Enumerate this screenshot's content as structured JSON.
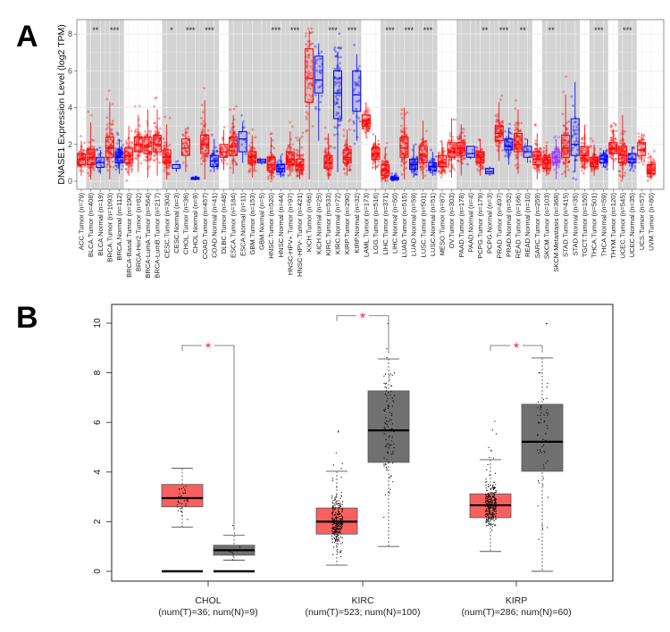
{
  "chart_data": [
    {
      "panel": "A",
      "type": "box",
      "ylabel": "DNASE1 Expression Level (log2 TPM)",
      "ylim": [
        0,
        8.5
      ],
      "yticks": [
        0,
        2,
        4,
        6,
        8
      ],
      "colors": {
        "tumor": "#ff0000",
        "normal": "#0000ff",
        "metastasis": "#9933ff",
        "band": "#d3d3d3"
      },
      "stats_order": [
        "min",
        "q1",
        "median",
        "q3",
        "max"
      ],
      "groups": [
        {
          "label": "ACC.Tumor (n=79)",
          "type": "tumor",
          "n": 79,
          "stats": [
            0.3,
            0.9,
            1.2,
            1.5,
            2.2
          ]
        },
        {
          "label": "BLCA.Tumor (n=408)",
          "type": "tumor",
          "n": 408,
          "stats": [
            0.1,
            0.9,
            1.3,
            1.7,
            3.2
          ]
        },
        {
          "label": "BLCA.Normal (n=19)",
          "type": "normal",
          "n": 19,
          "stats": [
            0.4,
            0.75,
            1.0,
            1.3,
            1.7
          ]
        },
        {
          "label": "BRCA.Tumor (n=1093)",
          "type": "tumor",
          "n": 1093,
          "stats": [
            0.1,
            1.3,
            1.8,
            2.4,
            4.3
          ]
        },
        {
          "label": "BRCA.Normal (n=112)",
          "type": "normal",
          "n": 112,
          "stats": [
            0.4,
            1.0,
            1.3,
            1.6,
            2.3
          ]
        },
        {
          "label": "BRCA-Basal.Tumor (n=190)",
          "type": "tumor",
          "n": 190,
          "stats": [
            0.3,
            1.0,
            1.4,
            1.8,
            3.0
          ]
        },
        {
          "label": "BRCA-Her2.Tumor (n=82)",
          "type": "tumor",
          "n": 82,
          "stats": [
            0.5,
            1.6,
            2.0,
            2.4,
            3.6
          ]
        },
        {
          "label": "BRCA-LumA.Tumor (n=564)",
          "type": "tumor",
          "n": 564,
          "stats": [
            0.2,
            1.5,
            1.9,
            2.4,
            3.9
          ]
        },
        {
          "label": "BRCA-LumB.Tumor (n=217)",
          "type": "tumor",
          "n": 217,
          "stats": [
            0.3,
            1.6,
            2.0,
            2.5,
            3.9
          ]
        },
        {
          "label": "CESC.Tumor (n=304)",
          "type": "tumor",
          "n": 304,
          "stats": [
            0.1,
            1.0,
            1.3,
            1.7,
            3.1
          ]
        },
        {
          "label": "CESC.Normal (n=3)",
          "type": "normal",
          "n": 3,
          "stats": [
            0.5,
            0.7,
            0.9,
            0.9,
            0.9
          ]
        },
        {
          "label": "CHOL.Tumor (n=36)",
          "type": "tumor",
          "n": 36,
          "stats": [
            0.5,
            1.4,
            1.8,
            2.3,
            2.9
          ]
        },
        {
          "label": "CHOL.Normal (n=9)",
          "type": "normal",
          "n": 9,
          "stats": [
            0.05,
            0.1,
            0.15,
            0.2,
            0.3
          ]
        },
        {
          "label": "COAD.Tumor (n=457)",
          "type": "tumor",
          "n": 457,
          "stats": [
            0.1,
            1.5,
            2.0,
            2.5,
            4.4
          ]
        },
        {
          "label": "COAD.Normal (n=41)",
          "type": "normal",
          "n": 41,
          "stats": [
            0.5,
            0.8,
            1.1,
            1.4,
            2.3
          ]
        },
        {
          "label": "DLBC.Tumor (n=48)",
          "type": "tumor",
          "n": 48,
          "stats": [
            0.6,
            1.3,
            1.6,
            2.0,
            2.8
          ]
        },
        {
          "label": "ESCA.Tumor (n=184)",
          "type": "tumor",
          "n": 184,
          "stats": [
            0.4,
            1.4,
            1.9,
            2.4,
            3.6
          ]
        },
        {
          "label": "ESCA.Normal (n=11)",
          "type": "normal",
          "n": 11,
          "stats": [
            1.0,
            1.6,
            2.3,
            2.7,
            3.2
          ]
        },
        {
          "label": "GBM.Tumor (n=153)",
          "type": "tumor",
          "n": 153,
          "stats": [
            0.2,
            1.0,
            1.3,
            1.6,
            2.5
          ]
        },
        {
          "label": "GBM.Normal (n=5)",
          "type": "normal",
          "n": 5,
          "stats": [
            0.9,
            1.0,
            1.1,
            1.2,
            1.2
          ]
        },
        {
          "label": "HNSC.Tumor (n=520)",
          "type": "tumor",
          "n": 520,
          "stats": [
            0.1,
            0.6,
            0.9,
            1.3,
            2.4
          ]
        },
        {
          "label": "HNSC.Normal (n=44)",
          "type": "normal",
          "n": 44,
          "stats": [
            0.2,
            0.5,
            0.7,
            0.9,
            1.4
          ]
        },
        {
          "label": "HNSC-HPV+.Tumor (n=97)",
          "type": "tumor",
          "n": 97,
          "stats": [
            0.3,
            0.9,
            1.2,
            1.6,
            2.7
          ]
        },
        {
          "label": "HNSC-HPV-.Tumor (n=421)",
          "type": "tumor",
          "n": 421,
          "stats": [
            0.1,
            0.6,
            0.9,
            1.2,
            2.3
          ]
        },
        {
          "label": "KICH.Tumor (n=66)",
          "type": "tumor",
          "n": 66,
          "stats": [
            0.1,
            4.3,
            5.6,
            7.2,
            8.2
          ]
        },
        {
          "label": "KICH.Normal (n=25)",
          "type": "normal",
          "n": 25,
          "stats": [
            2.2,
            4.8,
            5.5,
            6.8,
            7.5
          ]
        },
        {
          "label": "KIRC.Tumor (n=533)",
          "type": "tumor",
          "n": 533,
          "stats": [
            0.1,
            0.7,
            1.0,
            1.4,
            2.6
          ]
        },
        {
          "label": "KIRC.Normal (n=72)",
          "type": "normal",
          "n": 72,
          "stats": [
            0.5,
            3.4,
            4.8,
            6.0,
            7.0
          ]
        },
        {
          "label": "KIRP.Tumor (n=290)",
          "type": "tumor",
          "n": 290,
          "stats": [
            0.3,
            1.0,
            1.3,
            1.7,
            2.8
          ]
        },
        {
          "label": "KIRP.Normal (n=32)",
          "type": "normal",
          "n": 32,
          "stats": [
            2.2,
            3.8,
            4.7,
            6.0,
            6.9
          ]
        },
        {
          "label": "LAML.Tumor (n=173)",
          "type": "tumor",
          "n": 173,
          "stats": [
            2.4,
            3.0,
            3.3,
            3.6,
            4.2
          ]
        },
        {
          "label": "LGG.Tumor (n=516)",
          "type": "tumor",
          "n": 516,
          "stats": [
            0.6,
            1.2,
            1.5,
            1.8,
            2.5
          ]
        },
        {
          "label": "LIHC.Tumor (n=371)",
          "type": "tumor",
          "n": 371,
          "stats": [
            0.0,
            0.3,
            0.6,
            0.9,
            1.8
          ]
        },
        {
          "label": "LIHC.Normal (n=50)",
          "type": "normal",
          "n": 50,
          "stats": [
            0.05,
            0.1,
            0.15,
            0.2,
            0.35
          ]
        },
        {
          "label": "LUAD.Tumor (n=515)",
          "type": "tumor",
          "n": 515,
          "stats": [
            0.1,
            1.3,
            1.8,
            2.4,
            4.0
          ]
        },
        {
          "label": "LUAD.Normal (n=59)",
          "type": "normal",
          "n": 59,
          "stats": [
            0.2,
            0.65,
            0.9,
            1.2,
            2.0
          ]
        },
        {
          "label": "LUSC.Tumor (n=501)",
          "type": "tumor",
          "n": 501,
          "stats": [
            0.1,
            1.0,
            1.4,
            1.9,
            3.3
          ]
        },
        {
          "label": "LUSC.Normal (n=51)",
          "type": "normal",
          "n": 51,
          "stats": [
            0.3,
            0.6,
            0.8,
            1.0,
            1.6
          ]
        },
        {
          "label": "MESO.Tumor (n=87)",
          "type": "tumor",
          "n": 87,
          "stats": [
            0.3,
            0.8,
            1.0,
            1.4,
            2.2
          ]
        },
        {
          "label": "OV.Tumor (n=303)",
          "type": "tumor",
          "n": 303,
          "stats": [
            0.2,
            1.3,
            1.6,
            2.1,
            3.4
          ]
        },
        {
          "label": "PAAD.Tumor (n=178)",
          "type": "tumor",
          "n": 178,
          "stats": [
            0.3,
            1.4,
            1.8,
            2.1,
            3.1
          ]
        },
        {
          "label": "PAAD.Normal (n=4)",
          "type": "normal",
          "n": 4,
          "stats": [
            1.2,
            1.3,
            1.5,
            1.9,
            1.9
          ]
        },
        {
          "label": "PCPG.Tumor (n=179)",
          "type": "tumor",
          "n": 179,
          "stats": [
            0.3,
            1.0,
            1.3,
            1.6,
            2.3
          ]
        },
        {
          "label": "PCPG.Normal (n=3)",
          "type": "normal",
          "n": 3,
          "stats": [
            0.3,
            0.4,
            0.5,
            0.7,
            0.8
          ]
        },
        {
          "label": "PRAD.Tumor (n=497)",
          "type": "tumor",
          "n": 497,
          "stats": [
            1.1,
            2.2,
            2.6,
            3.0,
            4.3
          ]
        },
        {
          "label": "PRAD.Normal (n=52)",
          "type": "normal",
          "n": 52,
          "stats": [
            0.9,
            1.7,
            1.9,
            2.3,
            2.9
          ]
        },
        {
          "label": "READ.Tumor (n=166)",
          "type": "tumor",
          "n": 166,
          "stats": [
            0.4,
            1.6,
            2.0,
            2.6,
            3.9
          ]
        },
        {
          "label": "READ.Normal (n=10)",
          "type": "normal",
          "n": 10,
          "stats": [
            1.0,
            1.3,
            1.6,
            1.9,
            2.3
          ]
        },
        {
          "label": "SARC.Tumor (n=259)",
          "type": "tumor",
          "n": 259,
          "stats": [
            0.1,
            0.9,
            1.2,
            1.6,
            2.6
          ]
        },
        {
          "label": "SKCM.Tumor (n=103)",
          "type": "tumor",
          "n": 103,
          "stats": [
            0.3,
            0.7,
            1.0,
            1.3,
            2.0
          ]
        },
        {
          "label": "SKCM.Metastasis (n=368)",
          "type": "metastasis",
          "n": 368,
          "stats": [
            0.1,
            1.0,
            1.3,
            1.6,
            2.3
          ]
        },
        {
          "label": "STAD.Tumor (n=415)",
          "type": "tumor",
          "n": 415,
          "stats": [
            0.2,
            1.3,
            1.8,
            2.5,
            4.7
          ]
        },
        {
          "label": "STAD.Normal (n=35)",
          "type": "normal",
          "n": 35,
          "stats": [
            0.5,
            1.4,
            2.0,
            3.4,
            5.4
          ]
        },
        {
          "label": "TGCT.Tumor (n=150)",
          "type": "tumor",
          "n": 150,
          "stats": [
            0.6,
            1.1,
            1.4,
            1.9,
            3.0
          ]
        },
        {
          "label": "THCA.Tumor (n=501)",
          "type": "tumor",
          "n": 501,
          "stats": [
            0.3,
            0.8,
            1.0,
            1.3,
            2.0
          ]
        },
        {
          "label": "THCA.Normal (n=59)",
          "type": "normal",
          "n": 59,
          "stats": [
            0.8,
            1.0,
            1.2,
            1.4,
            1.7
          ]
        },
        {
          "label": "THYM.Tumor (n=120)",
          "type": "tumor",
          "n": 120,
          "stats": [
            0.6,
            1.5,
            1.8,
            2.1,
            2.8
          ]
        },
        {
          "label": "UCEC.Tumor (n=545)",
          "type": "tumor",
          "n": 545,
          "stats": [
            0.1,
            1.0,
            1.4,
            1.9,
            3.6
          ]
        },
        {
          "label": "UCEC.Normal (n=35)",
          "type": "normal",
          "n": 35,
          "stats": [
            0.7,
            1.0,
            1.2,
            1.5,
            1.9
          ]
        },
        {
          "label": "UCS.Tumor (n=57)",
          "type": "tumor",
          "n": 57,
          "stats": [
            1.0,
            1.4,
            1.7,
            2.1,
            2.6
          ]
        },
        {
          "label": "UVM.Tumor (n=80)",
          "type": "tumor",
          "n": 80,
          "stats": [
            0.1,
            0.4,
            0.6,
            0.9,
            1.4
          ]
        }
      ],
      "comparisons": [
        {
          "pair": [
            1,
            2
          ],
          "stars": "**"
        },
        {
          "pair": [
            3,
            4
          ],
          "stars": "***"
        },
        {
          "pair": [
            9,
            10
          ],
          "stars": "*"
        },
        {
          "pair": [
            11,
            12
          ],
          "stars": "***"
        },
        {
          "pair": [
            13,
            14
          ],
          "stars": "***"
        },
        {
          "pair": [
            16,
            17
          ],
          "stars": ""
        },
        {
          "pair": [
            18,
            19
          ],
          "stars": ""
        },
        {
          "pair": [
            20,
            21
          ],
          "stars": "***"
        },
        {
          "pair": [
            22,
            23
          ],
          "stars": "***"
        },
        {
          "pair": [
            24,
            25
          ],
          "stars": ""
        },
        {
          "pair": [
            26,
            27
          ],
          "stars": "***"
        },
        {
          "pair": [
            28,
            29
          ],
          "stars": "***"
        },
        {
          "pair": [
            32,
            33
          ],
          "stars": "***"
        },
        {
          "pair": [
            34,
            35
          ],
          "stars": "***"
        },
        {
          "pair": [
            36,
            37
          ],
          "stars": "***"
        },
        {
          "pair": [
            40,
            41
          ],
          "stars": ""
        },
        {
          "pair": [
            42,
            43
          ],
          "stars": "**"
        },
        {
          "pair": [
            44,
            45
          ],
          "stars": "***"
        },
        {
          "pair": [
            46,
            47
          ],
          "stars": "**"
        },
        {
          "pair": [
            49,
            50
          ],
          "stars": "**"
        },
        {
          "pair": [
            51,
            52
          ],
          "stars": ""
        },
        {
          "pair": [
            54,
            55
          ],
          "stars": "***"
        },
        {
          "pair": [
            57,
            58
          ],
          "stars": "***"
        }
      ]
    },
    {
      "panel": "B",
      "type": "box",
      "ylim": [
        0,
        10.5
      ],
      "yticks": [
        0,
        2,
        4,
        6,
        8,
        10
      ],
      "colors": {
        "tumor": "#f8605f",
        "normal": "#707070",
        "significance": "#ff1a1a"
      },
      "stats_order": [
        "min",
        "q1",
        "median",
        "q3",
        "max"
      ],
      "categories": [
        {
          "name": "CHOL",
          "subtitle": "(num(T)=36; num(N)=9)",
          "n_tumor": 36,
          "n_normal": 9,
          "tumor": [
            1.78,
            2.6,
            2.95,
            3.5,
            4.15
          ],
          "normal": [
            0.45,
            0.65,
            0.85,
            1.05,
            1.45
          ],
          "zero_bars": true,
          "significance": "*",
          "bracket_y": 9.1
        },
        {
          "name": "KIRC",
          "subtitle": "(num(T)=523; num(N)=100)",
          "n_tumor": 523,
          "n_normal": 100,
          "tumor": [
            0.25,
            1.5,
            2.0,
            2.55,
            4.03
          ],
          "normal": [
            1.0,
            4.39,
            5.68,
            7.27,
            8.56
          ],
          "zero_bars": false,
          "significance": "*",
          "bracket_y": 10.3
        },
        {
          "name": "KIRP",
          "subtitle": "(num(T)=286; num(N)=60)",
          "n_tumor": 286,
          "n_normal": 60,
          "tumor": [
            0.8,
            2.16,
            2.66,
            3.12,
            4.5
          ],
          "normal": [
            0.0,
            4.03,
            5.22,
            6.73,
            8.6
          ],
          "zero_bars": false,
          "significance": "*",
          "bracket_y": 9.1
        }
      ]
    }
  ],
  "panel_labels": {
    "a": "A",
    "b": "B"
  }
}
